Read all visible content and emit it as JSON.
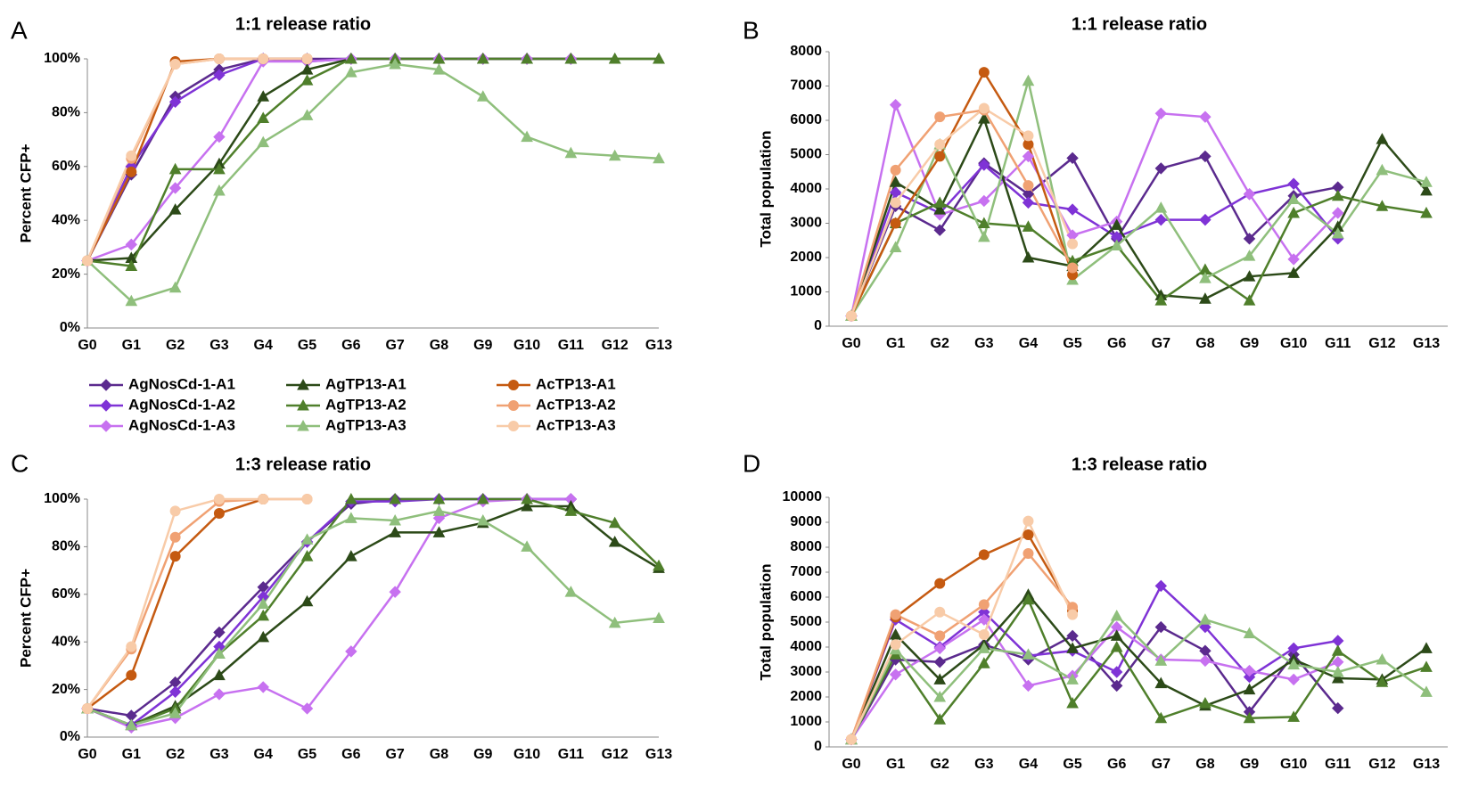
{
  "legend": [
    {
      "name": "AgNosCd-1-A1",
      "color": "#5b2a8e",
      "marker": "diamond"
    },
    {
      "name": "AgNosCd-1-A2",
      "color": "#7f33d6",
      "marker": "diamond"
    },
    {
      "name": "AgNosCd-1-A3",
      "color": "#c771f0",
      "marker": "diamond"
    },
    {
      "name": "AgTP13-A1",
      "color": "#2c4a18",
      "marker": "triangle"
    },
    {
      "name": "AgTP13-A2",
      "color": "#4f7f2b",
      "marker": "triangle"
    },
    {
      "name": "AgTP13-A3",
      "color": "#8fbf7c",
      "marker": "triangle"
    },
    {
      "name": "AcTP13-A1",
      "color": "#c55a11",
      "marker": "circle"
    },
    {
      "name": "AcTP13-A2",
      "color": "#f0a173",
      "marker": "circle"
    },
    {
      "name": "AcTP13-A3",
      "color": "#f8cba8",
      "marker": "circle"
    }
  ],
  "chart_data": [
    {
      "type": "line",
      "panel": "A",
      "title": "1:1 release ratio",
      "ylabel": "Percent CFP+",
      "categories": [
        "G0",
        "G1",
        "G2",
        "G3",
        "G4",
        "G5",
        "G6",
        "G7",
        "G8",
        "G9",
        "G10",
        "G11",
        "G12",
        "G13"
      ],
      "ylim": [
        0,
        100
      ],
      "yticks": [
        {
          "value": 0,
          "label": "0%"
        },
        {
          "value": 20,
          "label": "20%"
        },
        {
          "value": 40,
          "label": "40%"
        },
        {
          "value": 60,
          "label": "60%"
        },
        {
          "value": 80,
          "label": "80%"
        },
        {
          "value": 100,
          "label": "100%"
        }
      ],
      "series": [
        {
          "values": [
            25,
            57,
            86,
            96,
            100,
            100,
            100,
            100,
            100,
            100,
            100,
            100,
            null,
            null
          ]
        },
        {
          "values": [
            25,
            60,
            84,
            94,
            100,
            99,
            100,
            100,
            100,
            100,
            100,
            100,
            null,
            null
          ]
        },
        {
          "values": [
            25,
            31,
            52,
            71,
            99,
            99,
            100,
            100,
            100,
            100,
            100,
            100,
            null,
            null
          ]
        },
        {
          "values": [
            25,
            26,
            44,
            61,
            86,
            96,
            100,
            100,
            100,
            100,
            100,
            100,
            100,
            100
          ]
        },
        {
          "values": [
            25,
            23,
            59,
            59,
            78,
            92,
            100,
            100,
            100,
            100,
            100,
            100,
            100,
            100
          ]
        },
        {
          "values": [
            25,
            10,
            15,
            51,
            69,
            79,
            95,
            98,
            96,
            86,
            71,
            65,
            64,
            63
          ]
        },
        {
          "values": [
            25,
            58,
            99,
            100,
            100,
            100,
            null,
            null,
            null,
            null,
            null,
            null,
            null,
            null
          ]
        },
        {
          "values": [
            25,
            63,
            98,
            100,
            100,
            100,
            null,
            null,
            null,
            null,
            null,
            null,
            null,
            null
          ]
        },
        {
          "values": [
            25,
            64,
            98,
            100,
            100,
            100,
            null,
            null,
            null,
            null,
            null,
            null,
            null,
            null
          ]
        }
      ]
    },
    {
      "type": "line",
      "panel": "B",
      "title": "1:1 release ratio",
      "ylabel": "Total population",
      "categories": [
        "G0",
        "G1",
        "G2",
        "G3",
        "G4",
        "G5",
        "G6",
        "G7",
        "G8",
        "G9",
        "G10",
        "G11",
        "G12",
        "G13"
      ],
      "ylim": [
        0,
        8000
      ],
      "yticks": [
        0,
        1000,
        2000,
        3000,
        4000,
        5000,
        6000,
        7000,
        8000
      ],
      "series": [
        {
          "values": [
            300,
            3500,
            2800,
            4750,
            3850,
            4900,
            2550,
            4600,
            4950,
            2550,
            3800,
            4050,
            null,
            null
          ]
        },
        {
          "values": [
            300,
            3900,
            3300,
            4700,
            3600,
            3400,
            2600,
            3100,
            3100,
            3850,
            4150,
            2550,
            null,
            null
          ]
        },
        {
          "values": [
            300,
            6450,
            3250,
            3650,
            4950,
            2650,
            3050,
            6200,
            6100,
            3850,
            1950,
            3300,
            null,
            null
          ]
        },
        {
          "values": [
            300,
            4200,
            3400,
            6050,
            2000,
            1750,
            2950,
            900,
            800,
            1450,
            1550,
            2900,
            5450,
            3950
          ]
        },
        {
          "values": [
            300,
            3000,
            3600,
            3000,
            2900,
            1900,
            2350,
            750,
            1650,
            750,
            3300,
            3800,
            3500,
            3300
          ]
        },
        {
          "values": [
            300,
            2300,
            5300,
            2600,
            7150,
            1350,
            2350,
            3450,
            1400,
            2050,
            3700,
            2700,
            4550,
            4200
          ]
        },
        {
          "values": [
            300,
            3000,
            4950,
            7400,
            5300,
            1500,
            null,
            null,
            null,
            null,
            null,
            null,
            null,
            null
          ]
        },
        {
          "values": [
            300,
            4550,
            6100,
            6300,
            4100,
            1700,
            null,
            null,
            null,
            null,
            null,
            null,
            null,
            null
          ]
        },
        {
          "values": [
            300,
            3600,
            5300,
            6350,
            5550,
            2400,
            null,
            null,
            null,
            null,
            null,
            null,
            null,
            null
          ]
        }
      ]
    },
    {
      "type": "line",
      "panel": "C",
      "title": "1:3 release ratio",
      "ylabel": "Percent CFP+",
      "categories": [
        "G0",
        "G1",
        "G2",
        "G3",
        "G4",
        "G5",
        "G6",
        "G7",
        "G8",
        "G9",
        "G10",
        "G11",
        "G12",
        "G13"
      ],
      "ylim": [
        0,
        100
      ],
      "yticks": [
        {
          "value": 0,
          "label": "0%"
        },
        {
          "value": 20,
          "label": "20%"
        },
        {
          "value": 40,
          "label": "40%"
        },
        {
          "value": 60,
          "label": "60%"
        },
        {
          "value": 80,
          "label": "80%"
        },
        {
          "value": 100,
          "label": "100%"
        }
      ],
      "series": [
        {
          "values": [
            12,
            9,
            23,
            44,
            63,
            82,
            98,
            100,
            100,
            100,
            100,
            100,
            null,
            null
          ]
        },
        {
          "values": [
            12,
            5,
            19,
            38,
            59,
            82,
            99,
            99,
            100,
            100,
            100,
            100,
            null,
            null
          ]
        },
        {
          "values": [
            12,
            4,
            8,
            18,
            21,
            12,
            36,
            61,
            92,
            99,
            100,
            100,
            null,
            null
          ]
        },
        {
          "values": [
            12,
            5,
            13,
            26,
            42,
            57,
            76,
            86,
            86,
            90,
            97,
            97,
            82,
            71
          ]
        },
        {
          "values": [
            12,
            5,
            12,
            35,
            51,
            76,
            100,
            100,
            100,
            100,
            100,
            95,
            90,
            72
          ]
        },
        {
          "values": [
            12,
            5,
            10,
            35,
            56,
            83,
            92,
            91,
            95,
            91,
            80,
            61,
            48,
            50
          ]
        },
        {
          "values": [
            12,
            26,
            76,
            94,
            100,
            null,
            null,
            null,
            null,
            null,
            null,
            null,
            null,
            null
          ]
        },
        {
          "values": [
            12,
            37,
            84,
            99,
            100,
            100,
            null,
            null,
            null,
            null,
            null,
            null,
            null,
            null
          ]
        },
        {
          "values": [
            12,
            38,
            95,
            100,
            100,
            100,
            null,
            null,
            null,
            null,
            null,
            null,
            null,
            null
          ]
        }
      ]
    },
    {
      "type": "line",
      "panel": "D",
      "title": "1:3 release ratio",
      "ylabel": "Total population",
      "categories": [
        "G0",
        "G1",
        "G2",
        "G3",
        "G4",
        "G5",
        "G6",
        "G7",
        "G8",
        "G9",
        "G10",
        "G11",
        "G12",
        "G13"
      ],
      "ylim": [
        0,
        10000
      ],
      "yticks": [
        0,
        1000,
        2000,
        3000,
        4000,
        5000,
        6000,
        7000,
        8000,
        9000,
        10000
      ],
      "series": [
        {
          "values": [
            300,
            3500,
            3400,
            4100,
            3500,
            4450,
            2450,
            4800,
            3850,
            1400,
            3700,
            1550,
            null,
            null
          ]
        },
        {
          "values": [
            300,
            5100,
            4000,
            5400,
            3650,
            3850,
            3000,
            6450,
            4800,
            2800,
            3950,
            4250,
            null,
            null
          ]
        },
        {
          "values": [
            300,
            2900,
            3950,
            5100,
            2450,
            2850,
            4800,
            3500,
            3450,
            3050,
            2700,
            3400,
            null,
            null
          ]
        },
        {
          "values": [
            300,
            4500,
            2700,
            4100,
            6100,
            3950,
            4450,
            2550,
            1650,
            2300,
            3500,
            2750,
            2700,
            3950
          ]
        },
        {
          "values": [
            300,
            3700,
            1100,
            3350,
            5900,
            1750,
            4000,
            1150,
            1750,
            1150,
            1200,
            3850,
            2600,
            3200
          ]
        },
        {
          "values": [
            300,
            3900,
            2000,
            3950,
            3700,
            2700,
            5250,
            3450,
            5100,
            4550,
            3300,
            3000,
            3500,
            2200
          ]
        },
        {
          "values": [
            300,
            5200,
            6550,
            7700,
            8500,
            5450,
            null,
            null,
            null,
            null,
            null,
            null,
            null,
            null
          ]
        },
        {
          "values": [
            300,
            5300,
            4450,
            5700,
            7750,
            5600,
            null,
            null,
            null,
            null,
            null,
            null,
            null,
            null
          ]
        },
        {
          "values": [
            300,
            4100,
            5400,
            4500,
            9050,
            5300,
            null,
            null,
            null,
            null,
            null,
            null,
            null,
            null
          ]
        }
      ]
    }
  ]
}
